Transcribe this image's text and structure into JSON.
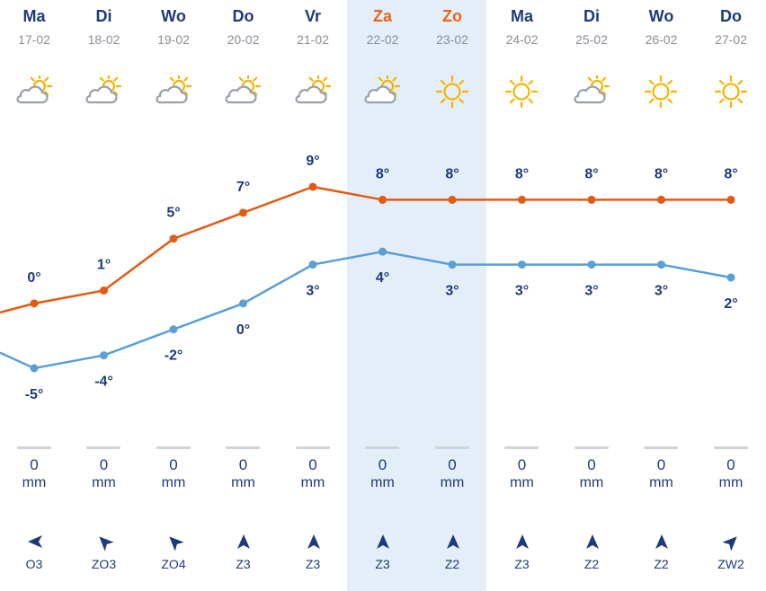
{
  "days": [
    {
      "day": "Ma",
      "date": "17-02",
      "weekend": false,
      "icon": "partly-cloudy-icon",
      "precip": "0",
      "unit": "mm",
      "wind": "O3",
      "wind_dir": "east"
    },
    {
      "day": "Di",
      "date": "18-02",
      "weekend": false,
      "icon": "partly-cloudy-icon",
      "precip": "0",
      "unit": "mm",
      "wind": "ZO3",
      "wind_dir": "southeast"
    },
    {
      "day": "Wo",
      "date": "19-02",
      "weekend": false,
      "icon": "partly-cloudy-icon",
      "precip": "0",
      "unit": "mm",
      "wind": "ZO4",
      "wind_dir": "southeast"
    },
    {
      "day": "Do",
      "date": "20-02",
      "weekend": false,
      "icon": "partly-cloudy-icon",
      "precip": "0",
      "unit": "mm",
      "wind": "Z3",
      "wind_dir": "south"
    },
    {
      "day": "Vr",
      "date": "21-02",
      "weekend": false,
      "icon": "partly-cloudy-icon",
      "precip": "0",
      "unit": "mm",
      "wind": "Z3",
      "wind_dir": "south"
    },
    {
      "day": "Za",
      "date": "22-02",
      "weekend": true,
      "icon": "partly-cloudy-icon",
      "precip": "0",
      "unit": "mm",
      "wind": "Z3",
      "wind_dir": "south"
    },
    {
      "day": "Zo",
      "date": "23-02",
      "weekend": true,
      "icon": "sun-icon",
      "precip": "0",
      "unit": "mm",
      "wind": "Z2",
      "wind_dir": "south"
    },
    {
      "day": "Ma",
      "date": "24-02",
      "weekend": false,
      "icon": "sun-icon",
      "precip": "0",
      "unit": "mm",
      "wind": "Z3",
      "wind_dir": "south"
    },
    {
      "day": "Di",
      "date": "25-02",
      "weekend": false,
      "icon": "partly-cloudy-icon",
      "precip": "0",
      "unit": "mm",
      "wind": "Z2",
      "wind_dir": "south"
    },
    {
      "day": "Wo",
      "date": "26-02",
      "weekend": false,
      "icon": "sun-icon",
      "precip": "0",
      "unit": "mm",
      "wind": "Z2",
      "wind_dir": "south"
    },
    {
      "day": "Do",
      "date": "27-02",
      "weekend": false,
      "icon": "sun-icon",
      "precip": "0",
      "unit": "mm",
      "wind": "ZW2",
      "wind_dir": "southwest"
    }
  ],
  "chart_data": {
    "type": "line",
    "categories": [
      "17-02",
      "18-02",
      "19-02",
      "20-02",
      "21-02",
      "22-02",
      "23-02",
      "24-02",
      "25-02",
      "26-02",
      "27-02"
    ],
    "series": [
      {
        "values": [
          0,
          1,
          5,
          7,
          9,
          8,
          8,
          8,
          8,
          8,
          8
        ],
        "color": "#e35a12"
      },
      {
        "values": [
          -5,
          -4,
          -2,
          0,
          3,
          4,
          3,
          3,
          3,
          3,
          2
        ],
        "color": "#5a9fd6"
      }
    ],
    "lead_in": {
      "max": -0.7,
      "min": -3.8
    },
    "unit": "°",
    "ylim": [
      -5,
      9
    ],
    "grid": false
  },
  "colors": {
    "weekday": "#1d3a7a",
    "weekend": "#e8651a",
    "weekend_bg": "#e3eef8",
    "sun": "#f5b400",
    "cloud": "#9aa0a8",
    "date": "#8a8f99"
  }
}
